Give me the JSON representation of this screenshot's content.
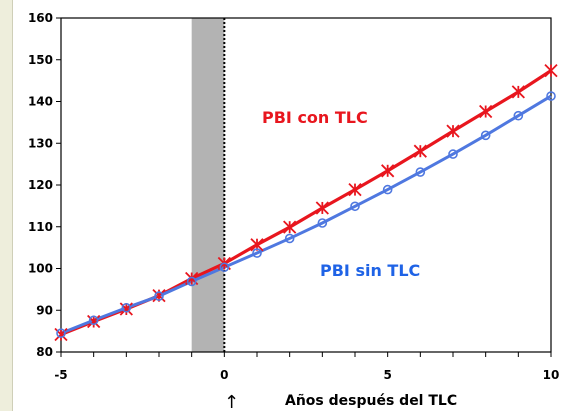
{
  "chart_data": {
    "type": "line",
    "title": "",
    "xlabel": "Años después del TLC",
    "ylabel": "",
    "xlim": [
      -5,
      10
    ],
    "ylim": [
      80,
      160
    ],
    "xticks": [
      "-5",
      "0",
      "5",
      "10"
    ],
    "yticks": [
      "80",
      "90",
      "100",
      "110",
      "120",
      "130",
      "140",
      "150",
      "160"
    ],
    "shaded_region": [
      -1,
      0
    ],
    "vertical_line_x": 0,
    "grid": false,
    "series": [
      {
        "name": "PBI con TLC",
        "color": "#e8161e",
        "marker": "asterisk",
        "x": [
          -5,
          -4,
          -3,
          -2,
          -1,
          0,
          1,
          2,
          3,
          4,
          5,
          6,
          7,
          8,
          9,
          10
        ],
        "values": [
          84.2,
          87.3,
          90.3,
          93.5,
          97.6,
          101.2,
          105.7,
          109.9,
          114.5,
          118.9,
          123.4,
          128.1,
          132.9,
          137.6,
          142.3,
          147.4
        ]
      },
      {
        "name": "PBI sin TLC",
        "color": "#4f78e0",
        "marker": "circle",
        "x": [
          -5,
          -4,
          -3,
          -2,
          -1,
          0,
          1,
          2,
          3,
          4,
          5,
          6,
          7,
          8,
          9,
          10
        ],
        "values": [
          84.5,
          87.6,
          90.6,
          93.4,
          96.9,
          100.3,
          103.7,
          107.2,
          110.9,
          114.9,
          118.9,
          123.1,
          127.4,
          131.9,
          136.6,
          141.3
        ]
      }
    ]
  },
  "labels": {
    "con_tlc": "PBI con TLC",
    "sin_tlc": "PBI sin TLC",
    "arrow": "↑"
  }
}
